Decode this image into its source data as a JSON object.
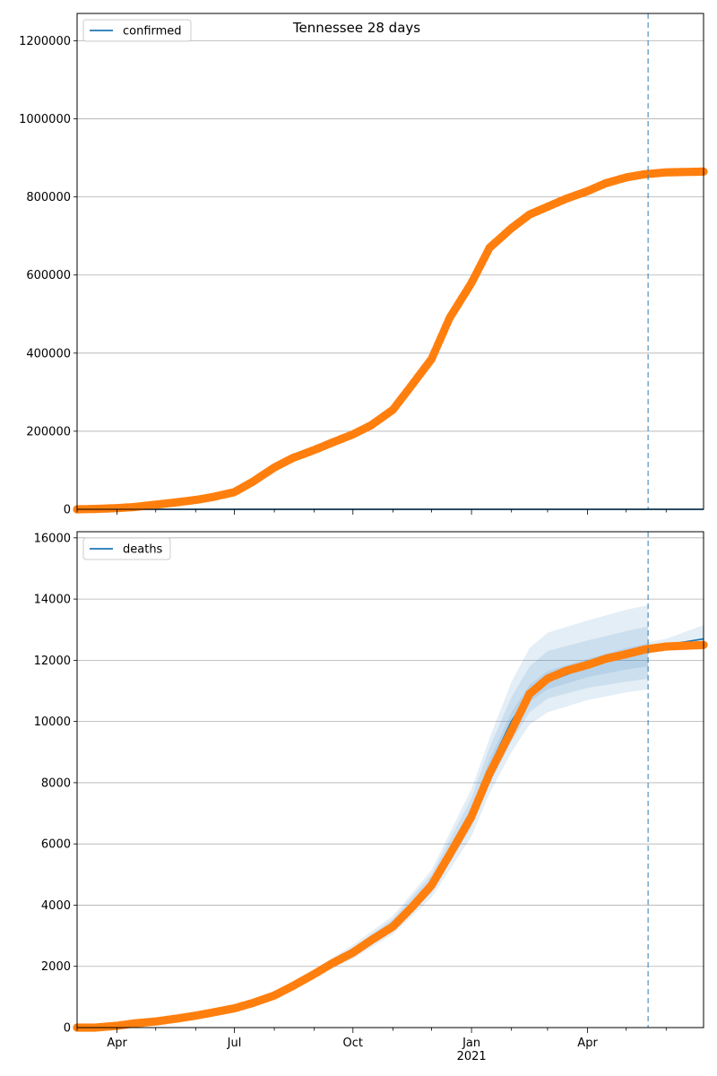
{
  "figure_title": "Tennessee 28 days",
  "colors": {
    "observed": "#ff7f0e",
    "model": "#1f77b4",
    "grid": "#b0b0b0",
    "band": "#1f77b4"
  },
  "x_axis": {
    "range": [
      "2020-03-01",
      "2021-06-30"
    ],
    "month_labels": [
      "Apr",
      "Jul",
      "Oct",
      "Jan",
      "Apr"
    ],
    "year_label": "2021"
  },
  "forecast_date": "2021-05-18",
  "chart_data": [
    {
      "type": "scatter",
      "legend": "confirmed",
      "legend_placement": "upper-left",
      "grid": "horizontal",
      "ylim": [
        0,
        1270000
      ],
      "yticks": [
        "0",
        "200000",
        "400000",
        "600000",
        "800000",
        "1000000",
        "1200000"
      ],
      "series": [
        {
          "name": "confirmed",
          "kind": "observed-points",
          "points": [
            [
              "2020-03-01",
              0
            ],
            [
              "2020-03-15",
              1000
            ],
            [
              "2020-04-01",
              3000
            ],
            [
              "2020-04-15",
              6000
            ],
            [
              "2020-05-01",
              12000
            ],
            [
              "2020-05-15",
              17000
            ],
            [
              "2020-06-01",
              24000
            ],
            [
              "2020-06-15",
              32000
            ],
            [
              "2020-07-01",
              44000
            ],
            [
              "2020-07-15",
              70000
            ],
            [
              "2020-08-01",
              107000
            ],
            [
              "2020-08-15",
              131000
            ],
            [
              "2020-09-01",
              152000
            ],
            [
              "2020-09-15",
              171000
            ],
            [
              "2020-10-01",
              192000
            ],
            [
              "2020-10-15",
              215000
            ],
            [
              "2020-11-01",
              255000
            ],
            [
              "2020-11-15",
              315000
            ],
            [
              "2020-12-01",
              385000
            ],
            [
              "2020-12-15",
              490000
            ],
            [
              "2021-01-01",
              580000
            ],
            [
              "2021-01-15",
              670000
            ],
            [
              "2021-02-01",
              720000
            ],
            [
              "2021-02-15",
              755000
            ],
            [
              "2021-03-01",
              775000
            ],
            [
              "2021-03-15",
              795000
            ],
            [
              "2021-04-01",
              815000
            ],
            [
              "2021-04-15",
              835000
            ],
            [
              "2021-05-01",
              850000
            ],
            [
              "2021-05-15",
              858000
            ],
            [
              "2021-06-01",
              863000
            ],
            [
              "2021-06-30",
              865000
            ]
          ]
        },
        {
          "name": "confirmed",
          "kind": "model-line",
          "points": [
            [
              "2020-03-01",
              0
            ],
            [
              "2021-06-30",
              0
            ]
          ]
        }
      ]
    },
    {
      "type": "line",
      "legend": "deaths",
      "legend_placement": "upper-left",
      "grid": "horizontal",
      "ylim": [
        0,
        16200
      ],
      "yticks": [
        "0",
        "2000",
        "4000",
        "6000",
        "8000",
        "10000",
        "12000",
        "14000",
        "16000"
      ],
      "series": [
        {
          "name": "deaths",
          "kind": "observed-points",
          "points": [
            [
              "2020-03-01",
              0
            ],
            [
              "2020-03-15",
              0
            ],
            [
              "2020-04-01",
              60
            ],
            [
              "2020-04-15",
              140
            ],
            [
              "2020-05-01",
              200
            ],
            [
              "2020-05-15",
              280
            ],
            [
              "2020-06-01",
              390
            ],
            [
              "2020-06-15",
              500
            ],
            [
              "2020-07-01",
              630
            ],
            [
              "2020-07-15",
              800
            ],
            [
              "2020-08-01",
              1050
            ],
            [
              "2020-08-15",
              1350
            ],
            [
              "2020-09-01",
              1750
            ],
            [
              "2020-09-15",
              2100
            ],
            [
              "2020-10-01",
              2450
            ],
            [
              "2020-10-15",
              2850
            ],
            [
              "2020-11-01",
              3300
            ],
            [
              "2020-11-15",
              3900
            ],
            [
              "2020-12-01",
              4650
            ],
            [
              "2020-12-15",
              5650
            ],
            [
              "2021-01-01",
              6900
            ],
            [
              "2021-01-15",
              8300
            ],
            [
              "2021-02-01",
              9700
            ],
            [
              "2021-02-15",
              10900
            ],
            [
              "2021-03-01",
              11400
            ],
            [
              "2021-03-15",
              11650
            ],
            [
              "2021-04-01",
              11850
            ],
            [
              "2021-04-15",
              12050
            ],
            [
              "2021-05-01",
              12200
            ],
            [
              "2021-05-15",
              12350
            ],
            [
              "2021-06-01",
              12450
            ],
            [
              "2021-06-30",
              12500
            ]
          ]
        },
        {
          "name": "deaths",
          "kind": "model-line",
          "points": [
            [
              "2020-10-01",
              2450
            ],
            [
              "2020-11-01",
              3350
            ],
            [
              "2020-12-01",
              4700
            ],
            [
              "2021-01-01",
              7000
            ],
            [
              "2021-01-15",
              8500
            ],
            [
              "2021-02-01",
              10000
            ],
            [
              "2021-02-15",
              10900
            ],
            [
              "2021-03-01",
              11300
            ],
            [
              "2021-04-01",
              11800
            ],
            [
              "2021-05-01",
              12200
            ],
            [
              "2021-06-01",
              12500
            ],
            [
              "2021-06-30",
              12700
            ]
          ]
        }
      ],
      "uncertainty_bands": [
        {
          "x": [
            "2020-08-01",
            "2020-09-01",
            "2020-10-01",
            "2020-11-01",
            "2020-12-01",
            "2021-01-01",
            "2021-01-15",
            "2021-02-01",
            "2021-02-15",
            "2021-03-01",
            "2021-04-01",
            "2021-05-01",
            "2021-05-18"
          ],
          "low": [
            1000,
            1650,
            2250,
            3050,
            4250,
            6250,
            7650,
            9000,
            9900,
            10300,
            10700,
            10950,
            11050
          ],
          "high": [
            1150,
            1900,
            2700,
            3650,
            5150,
            7800,
            9450,
            11300,
            12400,
            12900,
            13300,
            13650,
            13800
          ]
        },
        {
          "x": [
            "2020-08-01",
            "2020-09-01",
            "2020-10-01",
            "2020-11-01",
            "2020-12-01",
            "2021-01-01",
            "2021-01-15",
            "2021-02-01",
            "2021-02-15",
            "2021-03-01",
            "2021-04-01",
            "2021-05-01",
            "2021-05-18"
          ],
          "low": [
            1030,
            1700,
            2330,
            3150,
            4400,
            6550,
            7950,
            9350,
            10300,
            10750,
            11100,
            11300,
            11400
          ],
          "high": [
            1120,
            1850,
            2600,
            3550,
            5000,
            7500,
            9150,
            10800,
            11800,
            12300,
            12650,
            12950,
            13100
          ]
        },
        {
          "x": [
            "2020-08-01",
            "2020-09-01",
            "2020-10-01",
            "2020-11-01",
            "2020-12-01",
            "2021-01-01",
            "2021-01-15",
            "2021-02-01",
            "2021-02-15",
            "2021-03-01",
            "2021-04-01",
            "2021-05-01",
            "2021-05-18"
          ],
          "low": [
            1060,
            1750,
            2400,
            3250,
            4550,
            6800,
            8250,
            9700,
            10650,
            11050,
            11450,
            11700,
            11800
          ],
          "high": [
            1090,
            1800,
            2500,
            3400,
            4800,
            7200,
            8750,
            10300,
            11200,
            11650,
            12050,
            12400,
            12550
          ]
        },
        {
          "x": [
            "2021-05-18",
            "2021-06-01",
            "2021-06-30"
          ],
          "low": [
            12350,
            12400,
            12500
          ],
          "high": [
            12600,
            12700,
            13150
          ]
        }
      ]
    }
  ]
}
